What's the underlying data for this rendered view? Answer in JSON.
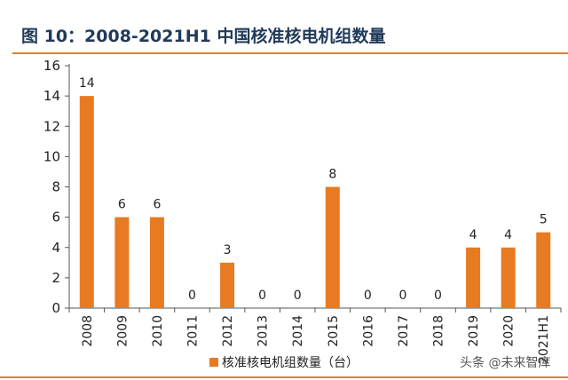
{
  "title": "图 10：2008-2021H1 中国核准核电机组数量",
  "watermark": "头条 @未来智库",
  "colors": {
    "bar": "#e87a22",
    "rule": "#e87a22",
    "title": "#1f3a5a",
    "axis": "#555555",
    "grid": "#e6e6e6"
  },
  "chart_data": {
    "type": "bar",
    "title": "图 10：2008-2021H1 中国核准核电机组数量",
    "categories": [
      "2008",
      "2009",
      "2010",
      "2011",
      "2012",
      "2013",
      "2014",
      "2015",
      "2016",
      "2017",
      "2018",
      "2019",
      "2020",
      "2021H1"
    ],
    "series": [
      {
        "name": "核准核电机组数量（台）",
        "values": [
          14,
          6,
          6,
          0,
          3,
          0,
          0,
          8,
          0,
          0,
          0,
          4,
          4,
          5
        ]
      }
    ],
    "yticks": [
      0,
      2,
      4,
      6,
      8,
      10,
      12,
      14,
      16
    ],
    "ylim": [
      0,
      16
    ],
    "xlabel": "",
    "ylabel": "",
    "grid": false,
    "legend_position": "bottom"
  }
}
